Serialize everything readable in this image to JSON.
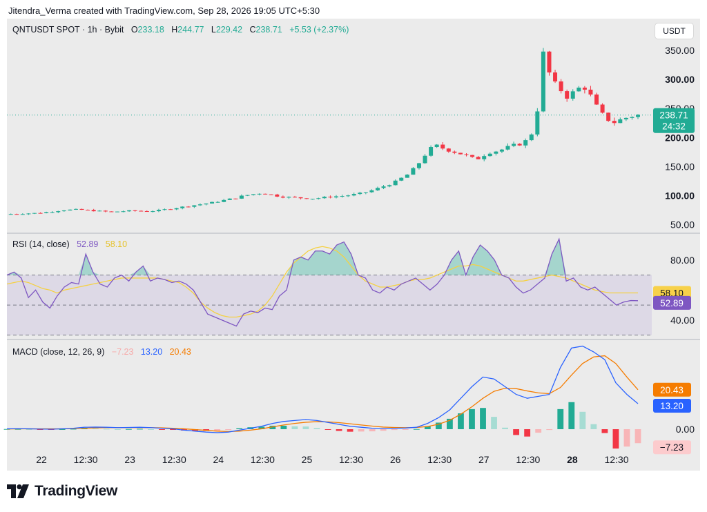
{
  "header": {
    "credit": "Jitendra_Verma created with TradingView.com, Sep 28, 2026 19:05 UTC+5:30"
  },
  "price_legend": {
    "symbol": "QNTUSDT SPOT · 1h · Bybit",
    "o_label": "O",
    "o_value": "233.18",
    "h_label": "H",
    "h_value": "244.77",
    "l_label": "L",
    "l_value": "229.42",
    "c_label": "C",
    "c_value": "238.71",
    "change": "+5.53 (+2.37%)"
  },
  "currency_button": "USDT",
  "rsi_legend": {
    "label": "RSI (14, close)",
    "rsi": "52.89",
    "ma": "58.10"
  },
  "macd_legend": {
    "label": "MACD (close, 12, 26, 9)",
    "hist": "−7.23",
    "macd": "13.20",
    "signal": "20.43"
  },
  "price_badge": {
    "price": "238.71",
    "countdown": "24:32"
  },
  "rsi_badges": {
    "ma": "58.10",
    "rsi": "52.89"
  },
  "macd_badges": {
    "signal": "20.43",
    "macd": "13.20",
    "hist": "−7.23"
  },
  "footer": {
    "brand": "TradingView"
  },
  "colors": {
    "up": "#22ab94",
    "down": "#f23645",
    "rsi": "#7e57c2",
    "rsi_ma": "#f5d142",
    "macd": "#2962ff",
    "signal": "#f57c00",
    "hist_up_strong": "#22ab94",
    "hist_up_weak": "#a6dcd3",
    "hist_down_strong": "#f23645",
    "hist_down_weak": "#f8b5b7"
  },
  "chart_data": [
    {
      "type": "candlestick",
      "title": "QNTUSDT SPOT · 1h · Bybit",
      "x_ticks": [
        "22",
        "12:30",
        "23",
        "12:30",
        "24",
        "12:30",
        "25",
        "12:30",
        "26",
        "12:30",
        "27",
        "12:30",
        "28",
        "12:30"
      ],
      "x_ticks_bold": [
        "28"
      ],
      "y_ticks": [
        "50.00",
        "100.00",
        "150.00",
        "200.00",
        "250.00",
        "300.00",
        "350.00"
      ],
      "y_ticks_bold": [
        "100.00",
        "200.00",
        "300.00"
      ],
      "ylim": [
        40,
        375
      ],
      "last_close": 238.71,
      "close_path": [
        [
          0,
          68
        ],
        [
          8,
          69
        ],
        [
          16,
          70
        ],
        [
          22,
          72
        ],
        [
          28,
          75
        ],
        [
          36,
          76
        ],
        [
          44,
          74
        ],
        [
          52,
          72
        ],
        [
          58,
          73
        ],
        [
          64,
          74
        ],
        [
          70,
          73
        ],
        [
          76,
          74
        ],
        [
          80,
          76
        ],
        [
          88,
          80
        ],
        [
          96,
          84
        ],
        [
          104,
          88
        ],
        [
          110,
          92
        ],
        [
          116,
          96
        ],
        [
          120,
          100
        ],
        [
          128,
          104
        ],
        [
          132,
          103
        ],
        [
          136,
          100
        ],
        [
          140,
          98
        ],
        [
          148,
          96
        ],
        [
          156,
          95
        ],
        [
          164,
          98
        ],
        [
          172,
          100
        ],
        [
          180,
          104
        ],
        [
          186,
          110
        ],
        [
          196,
          122
        ],
        [
          204,
          138
        ],
        [
          210,
          160
        ],
        [
          214,
          180
        ],
        [
          218,
          186
        ],
        [
          222,
          180
        ],
        [
          226,
          176
        ],
        [
          232,
          170
        ],
        [
          238,
          162
        ],
        [
          244,
          174
        ],
        [
          250,
          178
        ],
        [
          256,
          186
        ],
        [
          262,
          190
        ],
        [
          268,
          215
        ],
        [
          272,
          345
        ],
        [
          276,
          300
        ],
        [
          280,
          285
        ],
        [
          284,
          270
        ],
        [
          288,
          280
        ],
        [
          292,
          290
        ],
        [
          296,
          272
        ],
        [
          300,
          248
        ],
        [
          304,
          232
        ],
        [
          308,
          226
        ],
        [
          312,
          232
        ],
        [
          316,
          236
        ],
        [
          320,
          238.71
        ]
      ]
    },
    {
      "type": "line",
      "title": "RSI (14, close)",
      "y_ticks": [
        "40.00",
        "80.00"
      ],
      "bands": [
        70,
        50,
        30
      ],
      "ylim": [
        28,
        96
      ],
      "series": [
        {
          "name": "RSI",
          "values": [
            70,
            72,
            68,
            55,
            60,
            52,
            48,
            56,
            62,
            65,
            64,
            84,
            72,
            64,
            62,
            68,
            70,
            66,
            72,
            76,
            66,
            68,
            67,
            65,
            66,
            64,
            60,
            52,
            44,
            42,
            40,
            38,
            36,
            44,
            46,
            45,
            48,
            47,
            56,
            60,
            80,
            82,
            80,
            86,
            86,
            84,
            90,
            92,
            84,
            70,
            68,
            60,
            58,
            62,
            60,
            64,
            66,
            68,
            64,
            60,
            64,
            70,
            80,
            86,
            70,
            82,
            90,
            86,
            80,
            70,
            68,
            62,
            58,
            60,
            64,
            68,
            84,
            94,
            66,
            68,
            62,
            60,
            62,
            58,
            54,
            50,
            52,
            53,
            52.89
          ]
        },
        {
          "name": "MA",
          "values": [
            64,
            65,
            66,
            65,
            63,
            61,
            60,
            58,
            60,
            61,
            62,
            63,
            64,
            65,
            66,
            67,
            68,
            68,
            68,
            68,
            68,
            68,
            67,
            66,
            65,
            62,
            58,
            52,
            48,
            45,
            43,
            42,
            42,
            43,
            44,
            46,
            50,
            56,
            64,
            72,
            78,
            82,
            86,
            88,
            89,
            88,
            86,
            82,
            76,
            70,
            66,
            64,
            62,
            62,
            63,
            64,
            66,
            67,
            67,
            68,
            70,
            72,
            74,
            76,
            76,
            77,
            76,
            74,
            72,
            70,
            68,
            66,
            66,
            67,
            68,
            69,
            70,
            69,
            68,
            66,
            64,
            62,
            60,
            59,
            58.1,
            58.1,
            58.1,
            58.1,
            58.1
          ]
        }
      ]
    },
    {
      "type": "line",
      "title": "MACD (close, 12, 26, 9)",
      "y_ticks": [
        "0.00"
      ],
      "ylim": [
        -10,
        45
      ],
      "series": [
        {
          "name": "MACD",
          "values": [
            0.2,
            0.3,
            0.2,
            0.1,
            0.0,
            0.2,
            0.5,
            1.0,
            1.1,
            1.0,
            0.8,
            0.9,
            1.0,
            0.8,
            0.5,
            0.2,
            -0.5,
            -1.0,
            -1.5,
            -1.8,
            -1.5,
            -0.5,
            0.5,
            1.5,
            3.0,
            4.0,
            4.5,
            5.0,
            4.5,
            3.5,
            2.5,
            1.5,
            1.0,
            0.5,
            0.3,
            0.5,
            0.6,
            1.0,
            3.0,
            6.0,
            10.0,
            16.0,
            22.0,
            27.0,
            26.0,
            22.0,
            18.0,
            16.0,
            17.0,
            18.0,
            32.0,
            42.0,
            43.0,
            40.0,
            36.0,
            24.0,
            18.0,
            13.2
          ]
        },
        {
          "name": "Signal",
          "values": [
            0.1,
            0.2,
            0.2,
            0.2,
            0.2,
            0.2,
            0.3,
            0.5,
            0.7,
            0.8,
            0.8,
            0.8,
            0.8,
            0.8,
            0.7,
            0.5,
            0.2,
            -0.2,
            -0.6,
            -1.0,
            -1.2,
            -1.0,
            -0.5,
            0.2,
            1.2,
            2.2,
            3.0,
            3.6,
            3.9,
            3.8,
            3.4,
            2.8,
            2.2,
            1.6,
            1.1,
            0.9,
            0.8,
            0.9,
            1.4,
            2.6,
            4.6,
            7.8,
            11.6,
            16.0,
            19.6,
            21.2,
            21.0,
            19.8,
            18.8,
            18.4,
            21.6,
            28.0,
            34.0,
            37.4,
            38.0,
            34.0,
            27.0,
            20.43
          ]
        },
        {
          "name": "Histogram",
          "values": [
            0.1,
            0.1,
            0.0,
            -0.1,
            -0.2,
            0.0,
            0.2,
            0.5,
            0.4,
            0.2,
            0.0,
            0.1,
            0.2,
            0.0,
            -0.2,
            -0.3,
            -0.7,
            -0.8,
            -0.9,
            -0.8,
            -0.3,
            0.5,
            1.0,
            1.3,
            1.8,
            1.8,
            1.5,
            1.4,
            0.6,
            -0.3,
            -0.9,
            -1.3,
            -1.2,
            -1.1,
            -0.8,
            -0.4,
            -0.2,
            0.1,
            1.6,
            3.4,
            5.4,
            8.2,
            10.4,
            11.0,
            6.4,
            0.8,
            -3.0,
            -3.8,
            -1.8,
            -0.4,
            10.4,
            14.0,
            9.0,
            2.6,
            -2.0,
            -10.0,
            -9.0,
            -7.23
          ]
        }
      ]
    }
  ]
}
